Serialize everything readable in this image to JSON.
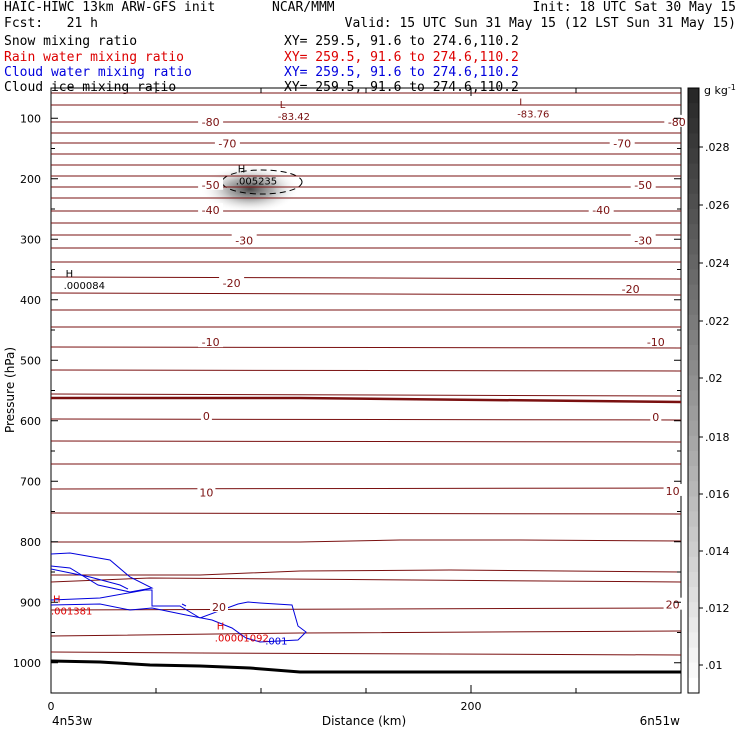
{
  "header": {
    "line1_left": "HAIC-HIWC 13km ARW-GFS init",
    "line1_center": "NCAR/MMM",
    "line1_right": "Init: 18 UTC Sat 30 May 15",
    "line2_left": "Fcst:   21 h",
    "line2_right": "Valid: 15 UTC Sun 31 May 15 (12 LST Sun 31 May 15)",
    "fields": [
      {
        "name": "Snow mixing ratio",
        "xy": "XY= 259.5, 91.6 to 274.6,110.2",
        "color": "#000000"
      },
      {
        "name": "Rain water mixing ratio",
        "xy": "XY= 259.5, 91.6 to 274.6,110.2",
        "color": "#dd0000"
      },
      {
        "name": "Cloud water mixing ratio",
        "xy": "XY= 259.5, 91.6 to 274.6,110.2",
        "color": "#0000dd"
      },
      {
        "name": "Cloud ice mixing ratio",
        "xy": "XY= 259.5, 91.6 to 274.6,110.2",
        "color": "#000000"
      }
    ]
  },
  "chart_data": {
    "type": "contour",
    "xlabel": "Distance (km)",
    "ylabel": "Pressure (hPa)",
    "x_ticks": [
      0,
      200
    ],
    "x_range_km": [
      0,
      300
    ],
    "y_ticks": [
      100,
      200,
      300,
      400,
      500,
      600,
      700,
      800,
      900,
      1000
    ],
    "y_range_hPa": [
      50,
      1050
    ],
    "x_endpoint_labels": {
      "left": "4n53w",
      "right": "6n51w"
    },
    "colorbar": {
      "unit": "g kg",
      "unit_exp": "-1",
      "ticks": [
        ".028",
        ".026",
        ".024",
        ".022",
        ".02",
        ".018",
        ".016",
        ".014",
        ".012",
        ".01"
      ],
      "range": [
        0.01,
        0.03
      ]
    },
    "temperature_contour_labels": [
      {
        "value": "-80",
        "km": 76,
        "hPa": 106
      },
      {
        "value": "-80",
        "km": 298,
        "hPa": 106
      },
      {
        "value": "-70",
        "km": 84,
        "hPa": 142
      },
      {
        "value": "-70",
        "km": 272,
        "hPa": 142
      },
      {
        "value": "-50",
        "km": 76,
        "hPa": 210
      },
      {
        "value": "-50",
        "km": 282,
        "hPa": 210
      },
      {
        "value": "-40",
        "km": 76,
        "hPa": 252
      },
      {
        "value": "-40",
        "km": 262,
        "hPa": 252
      },
      {
        "value": "-30",
        "km": 92,
        "hPa": 302
      },
      {
        "value": "-30",
        "km": 282,
        "hPa": 302
      },
      {
        "value": "-20",
        "km": 86,
        "hPa": 372
      },
      {
        "value": "-20",
        "km": 276,
        "hPa": 382
      },
      {
        "value": "-10",
        "km": 76,
        "hPa": 470
      },
      {
        "value": "-10",
        "km": 288,
        "hPa": 470
      },
      {
        "value": "0",
        "km": 74,
        "hPa": 592
      },
      {
        "value": "0",
        "km": 288,
        "hPa": 594
      },
      {
        "value": "10",
        "km": 74,
        "hPa": 719
      },
      {
        "value": "10",
        "km": 296,
        "hPa": 716
      },
      {
        "value": "20",
        "km": 80,
        "hPa": 908
      },
      {
        "value": "20",
        "km": 296,
        "hPa": 904
      }
    ],
    "extrema": [
      {
        "type": "L",
        "value": "-83.42",
        "km": 108,
        "hPa": 86,
        "color": "#7a1010"
      },
      {
        "type": "L",
        "value": "-83.76",
        "km": 222,
        "hPa": 82,
        "color": "#7a1010"
      },
      {
        "type": "H",
        "value": ".005235",
        "km": 88,
        "hPa": 193,
        "color": "#000000"
      },
      {
        "type": "H",
        "value": ".000084",
        "km": 6,
        "hPa": 366,
        "color": "#000000"
      },
      {
        "type": "H",
        "value": ".001381",
        "km": 0,
        "hPa": 904,
        "color": "#dd0000"
      },
      {
        "type": "H",
        "value": ".00001092",
        "km": 78,
        "hPa": 948,
        "color": "#dd0000"
      },
      {
        "type": "",
        "value": ".001",
        "km": 102,
        "hPa": 953,
        "color": "#0000dd"
      }
    ]
  }
}
